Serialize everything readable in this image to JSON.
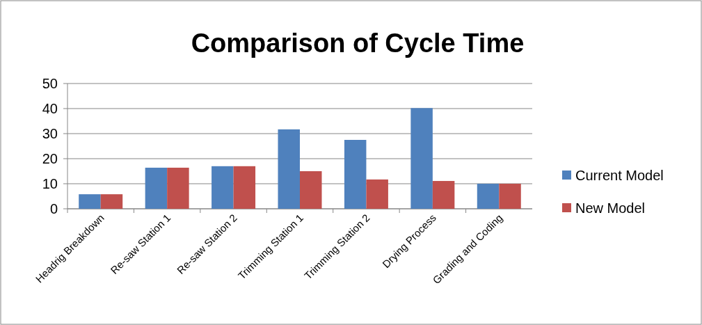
{
  "chart_data": {
    "type": "bar",
    "title": "Comparison of Cycle Time",
    "categories": [
      "Headrig Breakdown",
      "Re-saw Station 1",
      "Re-saw Station 2",
      "Trimming Station 1",
      "Trimming Station 2",
      "Drying Process",
      "Grading and Coding"
    ],
    "series": [
      {
        "name": "Current Model",
        "color": "#4f81bd",
        "values": [
          5.8,
          16.4,
          17,
          31.7,
          27.5,
          40.2,
          10
        ]
      },
      {
        "name": "New Model",
        "color": "#c0504d",
        "values": [
          5.8,
          16.4,
          17,
          15,
          11.7,
          11.1,
          10
        ]
      }
    ],
    "ylim": [
      0,
      50
    ],
    "yticks": [
      0,
      10,
      20,
      30,
      40,
      50
    ],
    "grid": "y",
    "legend": "right"
  }
}
